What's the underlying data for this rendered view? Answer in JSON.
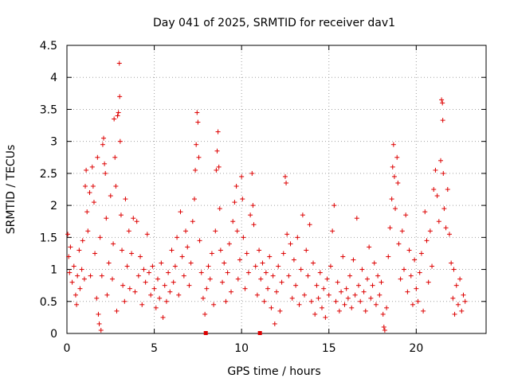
{
  "chart_data": {
    "type": "scatter",
    "title": "Day 041 of 2025, SRMTID for receiver dav1",
    "xlabel": "GPS time / hours",
    "ylabel": "SRMTID / TECUs",
    "xlim": [
      0,
      24
    ],
    "ylim": [
      0,
      4.5
    ],
    "xticks": [
      0,
      5,
      10,
      15,
      20
    ],
    "xtick_labels": [
      "0",
      "5",
      "10",
      "15",
      "20"
    ],
    "yticks": [
      0,
      0.5,
      1,
      1.5,
      2,
      2.5,
      3,
      3.5,
      4,
      4.5
    ],
    "ytick_labels": [
      "0",
      "0.5",
      "1",
      "1.5",
      "2",
      "2.5",
      "3",
      "3.5",
      "4",
      "4.5"
    ],
    "grid": true,
    "marker": "+",
    "color": "#dd0000",
    "series": [
      {
        "name": "SRMTID",
        "points": [
          [
            0.05,
            1.55
          ],
          [
            0.1,
            1.2
          ],
          [
            0.15,
            0.95
          ],
          [
            0.2,
            1.35
          ],
          [
            0.3,
            0.8
          ],
          [
            0.4,
            1.05
          ],
          [
            0.5,
            0.6
          ],
          [
            0.55,
            0.45
          ],
          [
            0.6,
            0.9
          ],
          [
            0.7,
            1.3
          ],
          [
            0.75,
            0.7
          ],
          [
            0.85,
            1.0
          ],
          [
            0.9,
            1.45
          ],
          [
            1.0,
            0.85
          ],
          [
            1.05,
            2.3
          ],
          [
            1.1,
            2.55
          ],
          [
            1.15,
            1.9
          ],
          [
            1.2,
            1.6
          ],
          [
            1.3,
            2.2
          ],
          [
            1.35,
            0.9
          ],
          [
            1.45,
            2.6
          ],
          [
            1.5,
            2.3
          ],
          [
            1.55,
            2.05
          ],
          [
            1.6,
            1.25
          ],
          [
            1.7,
            0.55
          ],
          [
            1.75,
            2.75
          ],
          [
            1.8,
            0.3
          ],
          [
            1.85,
            0.15
          ],
          [
            1.9,
            1.5
          ],
          [
            1.95,
            0.05
          ],
          [
            2.0,
            0.9
          ],
          [
            2.05,
            2.95
          ],
          [
            2.1,
            3.05
          ],
          [
            2.15,
            2.65
          ],
          [
            2.2,
            2.5
          ],
          [
            2.25,
            1.8
          ],
          [
            2.3,
            0.6
          ],
          [
            2.4,
            1.1
          ],
          [
            2.5,
            2.15
          ],
          [
            2.6,
            0.85
          ],
          [
            2.65,
            1.4
          ],
          [
            2.7,
            3.35
          ],
          [
            2.75,
            2.75
          ],
          [
            2.8,
            2.3
          ],
          [
            2.85,
            0.35
          ],
          [
            2.9,
            3.4
          ],
          [
            2.95,
            3.45
          ],
          [
            3.0,
            4.22
          ],
          [
            3.02,
            3.7
          ],
          [
            3.05,
            3.0
          ],
          [
            3.1,
            1.85
          ],
          [
            3.15,
            1.3
          ],
          [
            3.2,
            0.75
          ],
          [
            3.3,
            0.5
          ],
          [
            3.35,
            2.1
          ],
          [
            3.45,
            1.05
          ],
          [
            3.55,
            1.6
          ],
          [
            3.6,
            0.7
          ],
          [
            3.7,
            1.25
          ],
          [
            3.8,
            1.8
          ],
          [
            3.9,
            0.65
          ],
          [
            4.0,
            1.75
          ],
          [
            4.1,
            0.9
          ],
          [
            4.2,
            1.2
          ],
          [
            4.3,
            0.45
          ],
          [
            4.4,
            1.0
          ],
          [
            4.5,
            0.8
          ],
          [
            4.6,
            1.55
          ],
          [
            4.7,
            0.95
          ],
          [
            4.8,
            0.6
          ],
          [
            4.9,
            1.05
          ],
          [
            5.0,
            0.7
          ],
          [
            5.1,
            0.4
          ],
          [
            5.2,
            0.85
          ],
          [
            5.3,
            0.55
          ],
          [
            5.4,
            1.1
          ],
          [
            5.5,
            0.25
          ],
          [
            5.6,
            0.75
          ],
          [
            5.7,
            0.5
          ],
          [
            5.8,
            0.95
          ],
          [
            5.9,
            0.65
          ],
          [
            6.0,
            1.3
          ],
          [
            6.1,
            0.8
          ],
          [
            6.2,
            1.05
          ],
          [
            6.3,
            1.5
          ],
          [
            6.4,
            0.6
          ],
          [
            6.5,
            1.9
          ],
          [
            6.6,
            1.2
          ],
          [
            6.7,
            0.9
          ],
          [
            6.8,
            1.6
          ],
          [
            6.9,
            1.35
          ],
          [
            7.0,
            0.75
          ],
          [
            7.1,
            1.1
          ],
          [
            7.2,
            1.75
          ],
          [
            7.3,
            2.1
          ],
          [
            7.35,
            2.55
          ],
          [
            7.4,
            2.95
          ],
          [
            7.45,
            3.45
          ],
          [
            7.5,
            3.3
          ],
          [
            7.55,
            2.75
          ],
          [
            7.6,
            1.45
          ],
          [
            7.7,
            0.95
          ],
          [
            7.8,
            0.55
          ],
          [
            7.9,
            0.3
          ],
          [
            8.0,
            0.7
          ],
          [
            8.1,
            1.05
          ],
          [
            8.2,
            0.85
          ],
          [
            8.3,
            1.25
          ],
          [
            8.4,
            0.45
          ],
          [
            8.5,
            1.6
          ],
          [
            8.55,
            2.55
          ],
          [
            8.6,
            2.85
          ],
          [
            8.65,
            3.15
          ],
          [
            8.7,
            2.6
          ],
          [
            8.75,
            1.95
          ],
          [
            8.8,
            1.3
          ],
          [
            8.9,
            0.8
          ],
          [
            9.0,
            1.1
          ],
          [
            9.1,
            0.5
          ],
          [
            9.2,
            0.95
          ],
          [
            9.3,
            1.4
          ],
          [
            9.4,
            0.65
          ],
          [
            9.5,
            1.75
          ],
          [
            9.6,
            2.05
          ],
          [
            9.7,
            2.3
          ],
          [
            9.75,
            1.6
          ],
          [
            9.8,
            0.85
          ],
          [
            9.9,
            1.15
          ],
          [
            10.0,
            2.45
          ],
          [
            10.05,
            2.1
          ],
          [
            10.1,
            1.5
          ],
          [
            10.2,
            0.7
          ],
          [
            10.3,
            1.25
          ],
          [
            10.4,
            0.95
          ],
          [
            10.5,
            1.85
          ],
          [
            10.6,
            2.5
          ],
          [
            10.65,
            2.0
          ],
          [
            10.7,
            1.7
          ],
          [
            10.8,
            1.05
          ],
          [
            10.9,
            0.6
          ],
          [
            11.0,
            1.3
          ],
          [
            11.1,
            0.85
          ],
          [
            11.2,
            1.1
          ],
          [
            11.3,
            0.5
          ],
          [
            11.4,
            0.95
          ],
          [
            11.5,
            0.7
          ],
          [
            11.6,
            1.2
          ],
          [
            11.7,
            0.4
          ],
          [
            11.8,
            0.9
          ],
          [
            11.9,
            0.15
          ],
          [
            12.0,
            0.65
          ],
          [
            12.1,
            1.05
          ],
          [
            12.2,
            0.35
          ],
          [
            12.3,
            0.8
          ],
          [
            12.4,
            1.25
          ],
          [
            12.5,
            2.45
          ],
          [
            12.55,
            2.35
          ],
          [
            12.6,
            1.55
          ],
          [
            12.7,
            0.9
          ],
          [
            12.8,
            1.4
          ],
          [
            12.9,
            0.55
          ],
          [
            13.0,
            1.15
          ],
          [
            13.1,
            0.75
          ],
          [
            13.2,
            1.5
          ],
          [
            13.3,
            0.45
          ],
          [
            13.4,
            1.0
          ],
          [
            13.5,
            1.85
          ],
          [
            13.6,
            0.6
          ],
          [
            13.7,
            1.3
          ],
          [
            13.8,
            0.9
          ],
          [
            13.9,
            1.7
          ],
          [
            14.0,
            0.5
          ],
          [
            14.1,
            1.1
          ],
          [
            14.2,
            0.3
          ],
          [
            14.3,
            0.75
          ],
          [
            14.4,
            0.55
          ],
          [
            14.5,
            0.95
          ],
          [
            14.6,
            0.4
          ],
          [
            14.7,
            0.7
          ],
          [
            14.8,
            0.25
          ],
          [
            14.9,
            0.85
          ],
          [
            15.0,
            0.6
          ],
          [
            15.1,
            1.05
          ],
          [
            15.2,
            1.6
          ],
          [
            15.3,
            2.0
          ],
          [
            15.4,
            0.5
          ],
          [
            15.5,
            0.8
          ],
          [
            15.6,
            0.35
          ],
          [
            15.7,
            0.65
          ],
          [
            15.8,
            1.2
          ],
          [
            15.9,
            0.45
          ],
          [
            16.0,
            0.7
          ],
          [
            16.1,
            0.55
          ],
          [
            16.2,
            0.9
          ],
          [
            16.3,
            0.4
          ],
          [
            16.4,
            1.15
          ],
          [
            16.5,
            0.6
          ],
          [
            16.6,
            1.8
          ],
          [
            16.7,
            0.75
          ],
          [
            16.8,
            0.5
          ],
          [
            16.9,
            1.0
          ],
          [
            17.0,
            0.65
          ],
          [
            17.1,
            0.35
          ],
          [
            17.2,
            0.85
          ],
          [
            17.3,
            1.35
          ],
          [
            17.4,
            0.55
          ],
          [
            17.5,
            0.75
          ],
          [
            17.6,
            1.1
          ],
          [
            17.7,
            0.45
          ],
          [
            17.8,
            0.9
          ],
          [
            17.9,
            0.6
          ],
          [
            18.0,
            0.8
          ],
          [
            18.1,
            0.3
          ],
          [
            18.15,
            0.1
          ],
          [
            18.2,
            0.05
          ],
          [
            18.3,
            0.4
          ],
          [
            18.4,
            1.2
          ],
          [
            18.5,
            1.65
          ],
          [
            18.6,
            2.1
          ],
          [
            18.65,
            2.6
          ],
          [
            18.7,
            2.95
          ],
          [
            18.75,
            2.45
          ],
          [
            18.8,
            1.95
          ],
          [
            18.9,
            2.75
          ],
          [
            18.95,
            2.35
          ],
          [
            19.0,
            1.4
          ],
          [
            19.1,
            0.85
          ],
          [
            19.2,
            1.6
          ],
          [
            19.3,
            1.0
          ],
          [
            19.4,
            1.85
          ],
          [
            19.5,
            0.65
          ],
          [
            19.6,
            1.3
          ],
          [
            19.7,
            0.9
          ],
          [
            19.8,
            0.45
          ],
          [
            19.9,
            1.15
          ],
          [
            20.0,
            0.7
          ],
          [
            20.1,
            0.5
          ],
          [
            20.2,
            0.95
          ],
          [
            20.3,
            1.25
          ],
          [
            20.4,
            0.35
          ],
          [
            20.5,
            1.9
          ],
          [
            20.6,
            1.45
          ],
          [
            20.7,
            0.8
          ],
          [
            20.8,
            1.6
          ],
          [
            20.9,
            1.05
          ],
          [
            21.0,
            2.25
          ],
          [
            21.1,
            2.55
          ],
          [
            21.2,
            2.15
          ],
          [
            21.3,
            1.75
          ],
          [
            21.4,
            2.7
          ],
          [
            21.45,
            3.65
          ],
          [
            21.5,
            3.6
          ],
          [
            21.52,
            3.33
          ],
          [
            21.55,
            2.5
          ],
          [
            21.6,
            1.95
          ],
          [
            21.7,
            1.65
          ],
          [
            21.8,
            2.25
          ],
          [
            21.9,
            1.55
          ],
          [
            22.0,
            1.1
          ],
          [
            22.1,
            0.55
          ],
          [
            22.15,
            1.0
          ],
          [
            22.2,
            0.3
          ],
          [
            22.3,
            0.75
          ],
          [
            22.4,
            0.45
          ],
          [
            22.5,
            0.85
          ],
          [
            22.6,
            0.35
          ],
          [
            22.7,
            0.6
          ],
          [
            22.8,
            0.5
          ]
        ]
      }
    ],
    "marker_y0_hours": [
      7.95,
      11.05
    ]
  }
}
